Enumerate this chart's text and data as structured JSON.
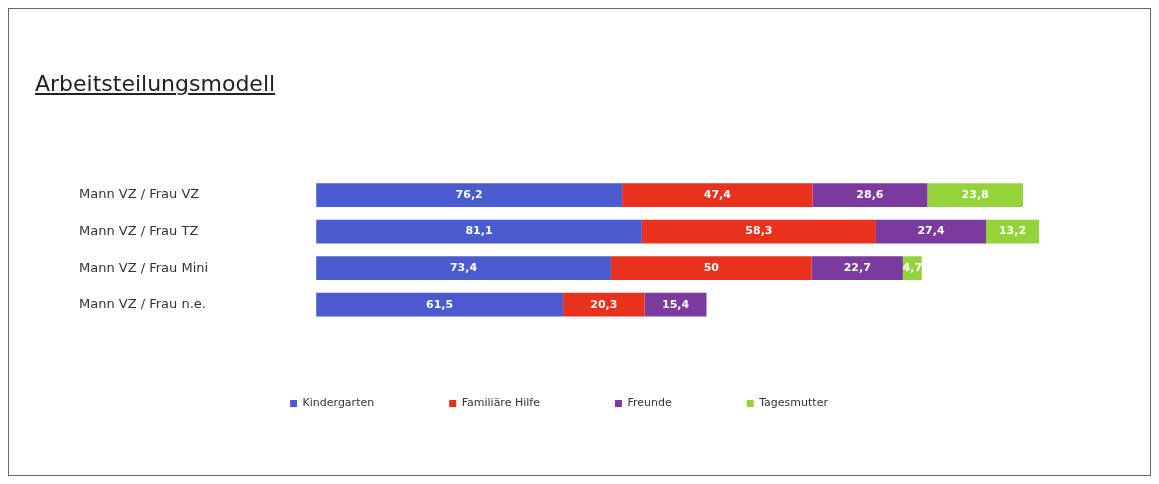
{
  "chart_data": {
    "type": "bar",
    "orientation": "horizontal",
    "stacked": true,
    "title": "Arbeitsteilungsmodell",
    "categories": [
      "Mann VZ / Frau VZ",
      "Mann VZ / Frau TZ",
      "Mann VZ / Frau Mini",
      "Mann VZ / Frau n.e."
    ],
    "series": [
      {
        "name": "Kindergarten",
        "color": "#4a5bd0",
        "values": [
          76.2,
          81.1,
          73.4,
          61.5
        ],
        "value_labels": [
          "76,2",
          "81,1",
          "73,4",
          "61,5"
        ]
      },
      {
        "name": "Familiäre Hilfe",
        "color": "#e8321e",
        "values": [
          47.4,
          58.3,
          50,
          20.3
        ],
        "value_labels": [
          "47,4",
          "58,3",
          "50",
          "20,3"
        ]
      },
      {
        "name": "Freunde",
        "color": "#7a3a9e",
        "values": [
          28.6,
          27.4,
          22.7,
          15.4
        ],
        "value_labels": [
          "28,6",
          "27,4",
          "22,7",
          "15,4"
        ]
      },
      {
        "name": "Tagesmutter",
        "color": "#94d33a",
        "values": [
          23.8,
          13.2,
          4.7,
          null
        ],
        "value_labels": [
          "23,8",
          "13,2",
          "4,7",
          null
        ]
      }
    ],
    "legend": "bottom",
    "grid": false,
    "tick_labels": "y"
  }
}
